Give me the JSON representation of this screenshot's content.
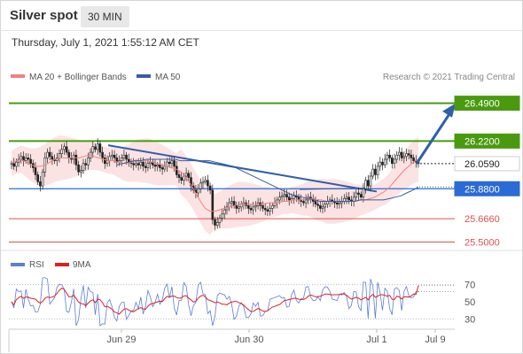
{
  "header": {
    "title": "Silver spot",
    "interval": "30 MIN"
  },
  "datetime": "Thursday, July 1, 2021 1:55:12 AM CET",
  "legend": {
    "bollinger": "MA 20 + Bollinger Bands",
    "ma50": "MA 50"
  },
  "copyright": "Research © 2021 Trading Central",
  "colors": {
    "bollinger": "#f08080",
    "ma50": "#3a5ba0",
    "resistance": "#4a9a10",
    "support": "#2a6bd6",
    "minor": "#e05050",
    "current": "#222222",
    "rsi": "#5b7fd6",
    "rsi_ma": "#e02020",
    "trend_arrow": "#2f5fa8"
  },
  "chart_data": [
    {
      "type": "candlestick",
      "title": "Silver spot",
      "ylim": [
        25.44,
        26.62
      ],
      "xticks": [
        "Jun 29",
        "Jun 30",
        "Jul 1",
        "Jul 9"
      ],
      "levels": [
        {
          "value": 26.49,
          "label": "26.4900",
          "kind": "resistance"
        },
        {
          "value": 26.22,
          "label": "26.2200",
          "kind": "resistance"
        },
        {
          "value": 26.059,
          "label": "26.0590",
          "kind": "current"
        },
        {
          "value": 25.88,
          "label": "25.8800",
          "kind": "support"
        },
        {
          "value": 25.666,
          "label": "25.6660",
          "kind": "minor"
        },
        {
          "value": 25.5,
          "label": "25.5000",
          "kind": "minor"
        }
      ],
      "close": [
        26.06,
        26.04,
        26.07,
        26.09,
        26.11,
        26.08,
        26.1,
        26.09,
        26.06,
        26.03,
        25.98,
        25.93,
        25.9,
        26.0,
        26.1,
        26.14,
        26.11,
        26.09,
        26.08,
        26.1,
        26.13,
        26.16,
        26.18,
        26.14,
        26.1,
        26.09,
        26.12,
        26.05,
        26.0,
        26.01,
        26.06,
        26.05,
        26.1,
        26.14,
        26.18,
        26.16,
        26.2,
        26.14,
        26.1,
        26.06,
        26.08,
        26.11,
        26.12,
        26.1,
        26.07,
        26.08,
        26.1,
        26.12,
        26.09,
        26.07,
        26.06,
        26.05,
        26.06,
        26.05,
        26.07,
        26.04,
        26.03,
        26.06,
        26.07,
        26.05,
        26.04,
        26.05,
        26.03,
        26.02,
        26.04,
        26.07,
        26.06,
        26.08,
        26.04,
        25.98,
        25.96,
        25.94,
        25.97,
        25.99,
        25.96,
        25.9,
        25.87,
        25.85,
        25.88,
        25.92,
        25.93,
        25.94,
        25.9,
        25.87,
        25.66,
        25.62,
        25.64,
        25.67,
        25.7,
        25.73,
        25.75,
        25.78,
        25.79,
        25.76,
        25.74,
        25.75,
        25.77,
        25.78,
        25.76,
        25.74,
        25.73,
        25.75,
        25.76,
        25.78,
        25.76,
        25.74,
        25.73,
        25.72,
        25.74,
        25.76,
        25.78,
        25.8,
        25.82,
        25.83,
        25.84,
        25.82,
        25.8,
        25.81,
        25.83,
        25.82,
        25.8,
        25.79,
        25.78,
        25.8,
        25.82,
        25.81,
        25.79,
        25.77,
        25.76,
        25.74,
        25.75,
        25.77,
        25.79,
        25.8,
        25.79,
        25.78,
        25.77,
        25.78,
        25.79,
        25.81,
        25.82,
        25.8,
        25.79,
        25.82,
        25.85,
        25.84,
        25.82,
        25.88,
        25.94,
        25.9,
        25.97,
        26.02,
        25.98,
        26.04,
        26.07,
        26.05,
        26.09,
        26.12,
        26.1,
        26.06,
        26.09,
        26.12,
        26.14,
        26.1,
        26.11,
        26.13,
        26.12,
        26.1,
        26.08,
        26.07,
        26.06
      ],
      "ma20_y": [
        26.06,
        26.08,
        26.09,
        26.07,
        26.05,
        26.04,
        26.04,
        26.05,
        26.07,
        26.09,
        26.1,
        26.1,
        26.1,
        26.1,
        26.1,
        26.11,
        26.12,
        26.11,
        26.1,
        26.09,
        26.08,
        26.08,
        26.07,
        26.06,
        26.06,
        26.07,
        26.08,
        26.08,
        26.08,
        26.07,
        26.06,
        26.05,
        26.04,
        26.03,
        26.02,
        26.0,
        25.96,
        25.91,
        25.85,
        25.79,
        25.74,
        25.72,
        25.72,
        25.73,
        25.74,
        25.75,
        25.76,
        25.77,
        25.77,
        25.77,
        25.77,
        25.77,
        25.77,
        25.78,
        25.78,
        25.78,
        25.79,
        25.79,
        25.8,
        25.8,
        25.8,
        25.81,
        25.81,
        25.8,
        25.8,
        25.79,
        25.79,
        25.79,
        25.79,
        25.79,
        25.79,
        25.79,
        25.8,
        25.8,
        25.81,
        25.82,
        25.84,
        25.86,
        25.89,
        25.93,
        25.97,
        26.01,
        26.04,
        26.07,
        26.09
      ],
      "ma50_y": [
        26.05,
        26.06,
        26.07,
        26.08,
        26.08,
        26.09,
        26.09,
        26.09,
        26.09,
        26.09,
        26.09,
        26.08,
        26.08,
        26.08,
        26.08,
        26.08,
        26.08,
        26.07,
        26.06,
        26.05,
        26.04,
        26.02,
        26.0,
        25.98,
        25.96,
        25.94,
        25.92,
        25.9,
        25.88,
        25.86,
        25.84,
        25.83,
        25.82,
        25.81,
        25.8,
        25.79,
        25.79,
        25.79,
        25.79,
        25.79,
        25.79,
        25.79,
        25.8,
        25.8,
        25.8,
        25.8,
        25.8,
        25.81,
        25.82,
        25.83,
        25.85,
        25.87,
        25.89
      ],
      "ma50_start_index": 44
    },
    {
      "type": "line",
      "title": "RSI",
      "series": [
        {
          "name": "RSI"
        },
        {
          "name": "9MA"
        }
      ],
      "ylim": [
        20,
        80
      ],
      "yticks": [
        70,
        50,
        30
      ],
      "gridlines": [
        70,
        30
      ],
      "rsi_end": 62,
      "rsi_ma_end": 69
    }
  ]
}
